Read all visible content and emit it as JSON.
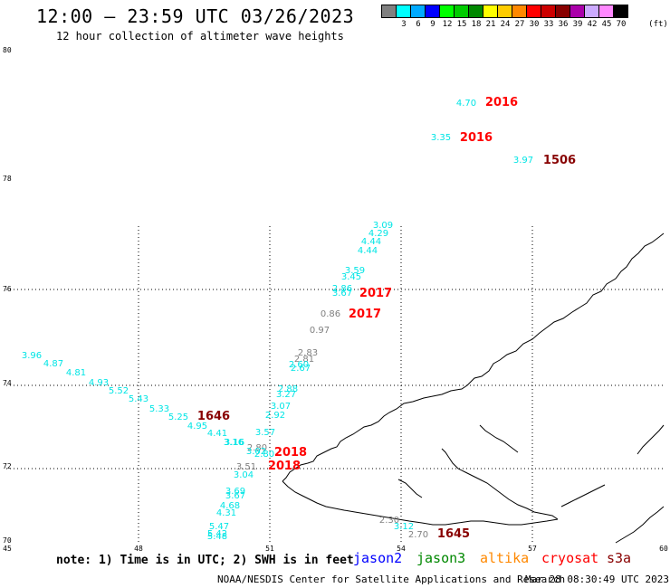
{
  "header": {
    "title": "12:00 – 23:59 UTC 03/26/2023",
    "subtitle": "12 hour collection of altimeter wave heights"
  },
  "colorbar": {
    "unit": "(ft)",
    "swatches": [
      {
        "color": "#808080",
        "label": "3"
      },
      {
        "color": "#00ffff",
        "label": "6"
      },
      {
        "color": "#00aaff",
        "label": "9"
      },
      {
        "color": "#0000ff",
        "label": "12"
      },
      {
        "color": "#00ff00",
        "label": "15"
      },
      {
        "color": "#00cc00",
        "label": "18"
      },
      {
        "color": "#008800",
        "label": "21"
      },
      {
        "color": "#ffff00",
        "label": "24"
      },
      {
        "color": "#ffcc00",
        "label": "27"
      },
      {
        "color": "#ff8800",
        "label": "30"
      },
      {
        "color": "#ff0000",
        "label": "33"
      },
      {
        "color": "#cc0000",
        "label": "36"
      },
      {
        "color": "#880000",
        "label": "39"
      },
      {
        "color": "#aa00aa",
        "label": "42"
      },
      {
        "color": "#ccaaff",
        "label": "45"
      },
      {
        "color": "#ff88ff",
        "label": "70"
      },
      {
        "color": "#000000",
        "label": ""
      }
    ]
  },
  "axes": {
    "lat_labels": [
      "80",
      "78",
      "76",
      "74",
      "72",
      "70"
    ],
    "lon_labels": [
      "45",
      "48",
      "51",
      "54",
      "57",
      "60"
    ]
  },
  "observations": [
    {
      "v": "4.70",
      "c": "cyan"
    },
    {
      "v": "3.35",
      "c": "cyan"
    },
    {
      "v": "3.97",
      "c": "cyan"
    },
    {
      "v": "3.09",
      "c": "cyan"
    },
    {
      "v": "4.29",
      "c": "cyan"
    },
    {
      "v": "4.44",
      "c": "cyan"
    },
    {
      "v": "4.44",
      "c": "cyan"
    },
    {
      "v": "3.59",
      "c": "cyan"
    },
    {
      "v": "3.45",
      "c": "cyan"
    },
    {
      "v": "2.86",
      "c": "cyan"
    },
    {
      "v": "3.67",
      "c": "cyan"
    },
    {
      "v": "0.86",
      "c": "gray"
    },
    {
      "v": "0.97",
      "c": "gray"
    },
    {
      "v": "2.83",
      "c": "gray"
    },
    {
      "v": "2.81",
      "c": "gray"
    },
    {
      "v": "2.60",
      "c": "cyan"
    },
    {
      "v": "2.67",
      "c": "cyan"
    },
    {
      "v": "2.88",
      "c": "cyan"
    },
    {
      "v": "3.27",
      "c": "cyan"
    },
    {
      "v": "3.07",
      "c": "cyan"
    },
    {
      "v": "2.92",
      "c": "cyan"
    },
    {
      "v": "3.57",
      "c": "cyan"
    },
    {
      "v": "2.80",
      "c": "gray"
    },
    {
      "v": "3.02",
      "c": "cyan"
    },
    {
      "v": "2.80",
      "c": "cyan"
    },
    {
      "v": "3.16",
      "c": "cyan"
    },
    {
      "v": "3.51",
      "c": "gray"
    },
    {
      "v": "3.04",
      "c": "cyan"
    },
    {
      "v": "3.69",
      "c": "cyan"
    },
    {
      "v": "3.67",
      "c": "cyan"
    },
    {
      "v": "4.68",
      "c": "cyan"
    },
    {
      "v": "4.31",
      "c": "cyan"
    },
    {
      "v": "5.47",
      "c": "cyan"
    },
    {
      "v": "5.42",
      "c": "cyan"
    },
    {
      "v": "5.48",
      "c": "cyan"
    },
    {
      "v": "3.96",
      "c": "cyan"
    },
    {
      "v": "4.87",
      "c": "cyan"
    },
    {
      "v": "4.81",
      "c": "cyan"
    },
    {
      "v": "4.93",
      "c": "cyan"
    },
    {
      "v": "5.52",
      "c": "cyan"
    },
    {
      "v": "5.43",
      "c": "cyan"
    },
    {
      "v": "5.33",
      "c": "cyan"
    },
    {
      "v": "5.25",
      "c": "cyan"
    },
    {
      "v": "4.95",
      "c": "cyan"
    },
    {
      "v": "4.41",
      "c": "cyan"
    },
    {
      "v": "3.16",
      "c": "cyan"
    },
    {
      "v": "2.30",
      "c": "gray"
    },
    {
      "v": "3.12",
      "c": "cyan"
    },
    {
      "v": "2.70",
      "c": "gray"
    }
  ],
  "time_labels": [
    {
      "t": "2016",
      "c": "#ff0000"
    },
    {
      "t": "2016",
      "c": "#ff0000"
    },
    {
      "t": "1506",
      "c": "#880000"
    },
    {
      "t": "2017",
      "c": "#ff0000"
    },
    {
      "t": "2017",
      "c": "#ff0000"
    },
    {
      "t": "1646",
      "c": "#880000"
    },
    {
      "t": "2018",
      "c": "#ff0000"
    },
    {
      "t": "2018",
      "c": "#ff0000"
    },
    {
      "t": "1645",
      "c": "#880000"
    }
  ],
  "footer": {
    "note": "note: 1) Time is in UTC; 2) SWH is in feet",
    "satellites": [
      {
        "name": "jason2",
        "color": "#0000ff"
      },
      {
        "name": "jason3",
        "color": "#008800"
      },
      {
        "name": "altika",
        "color": "#ff8800"
      },
      {
        "name": "cryosat",
        "color": "#ff0000"
      },
      {
        "name": "s3a",
        "color": "#880000"
      }
    ],
    "credit": "NOAA/NESDIS Center for Satellite Applications and Research",
    "timestamp": "Mar 28 08:30:49 UTC 2023"
  }
}
